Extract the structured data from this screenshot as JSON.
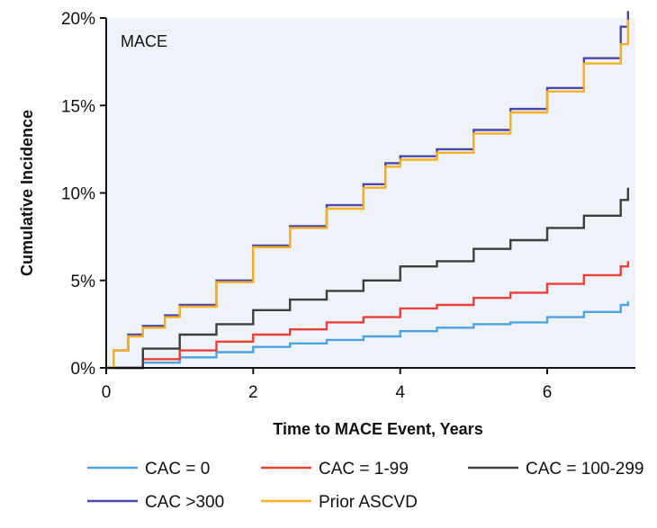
{
  "chart_data": {
    "type": "line",
    "step": true,
    "panel_label": "MACE",
    "xlabel": "Time to MACE Event, Years",
    "ylabel": "Cumulative Incidence",
    "xlim": [
      0,
      7.2
    ],
    "ylim": [
      0,
      20
    ],
    "x_ticks": [
      0,
      2,
      4,
      6
    ],
    "x_tick_labels": [
      "0",
      "2",
      "4",
      "6"
    ],
    "y_ticks": [
      0,
      5,
      10,
      15,
      20
    ],
    "y_tick_labels": [
      "0%",
      "5%",
      "10%",
      "15%",
      "20%"
    ],
    "background": "#eef3fa",
    "series": [
      {
        "name": "CAC = 0",
        "color": "#4ea3df",
        "x": [
          0,
          0.5,
          1,
          1.5,
          2,
          2.5,
          3,
          3.5,
          4,
          4.5,
          5,
          5.5,
          6,
          6.5,
          7,
          7.1
        ],
        "y": [
          0,
          0.3,
          0.6,
          0.9,
          1.2,
          1.4,
          1.6,
          1.8,
          2.1,
          2.3,
          2.5,
          2.6,
          2.9,
          3.2,
          3.6,
          3.8
        ]
      },
      {
        "name": "CAC = 1-99",
        "color": "#e8403a",
        "x": [
          0,
          0.5,
          1,
          1.5,
          2,
          2.5,
          3,
          3.5,
          4,
          4.5,
          5,
          5.5,
          6,
          6.5,
          7,
          7.1
        ],
        "y": [
          0,
          0.5,
          1.0,
          1.5,
          1.9,
          2.2,
          2.6,
          2.9,
          3.4,
          3.6,
          4.0,
          4.3,
          4.8,
          5.3,
          5.8,
          6.1
        ]
      },
      {
        "name": "CAC = 100-299",
        "color": "#3d3d3d",
        "x": [
          0,
          0.5,
          1,
          1.5,
          2,
          2.5,
          3,
          3.5,
          4,
          4.5,
          5,
          5.5,
          6,
          6.5,
          7,
          7.1
        ],
        "y": [
          0,
          1.1,
          1.9,
          2.5,
          3.3,
          3.9,
          4.4,
          5.0,
          5.8,
          6.1,
          6.8,
          7.3,
          8.0,
          8.7,
          9.6,
          10.3
        ]
      },
      {
        "name": "CAC >300",
        "color": "#4b46a8",
        "x": [
          0,
          0.1,
          0.3,
          0.5,
          0.8,
          1,
          1.5,
          2,
          2.5,
          3,
          3.5,
          3.8,
          4,
          4.5,
          5,
          5.5,
          6,
          6.5,
          7,
          7.1
        ],
        "y": [
          0,
          1.0,
          1.9,
          2.4,
          3.0,
          3.6,
          5.0,
          7.0,
          8.1,
          9.3,
          10.5,
          11.7,
          12.1,
          12.5,
          13.6,
          14.8,
          16.0,
          17.7,
          19.5,
          20.4
        ]
      },
      {
        "name": "Prior ASCVD",
        "color": "#f5b025",
        "x": [
          0,
          0.1,
          0.3,
          0.5,
          0.8,
          1,
          1.5,
          2,
          2.5,
          3,
          3.5,
          3.8,
          4,
          4.5,
          5,
          5.5,
          6,
          6.5,
          7,
          7.1
        ],
        "y": [
          0,
          1.0,
          1.8,
          2.3,
          2.9,
          3.5,
          4.9,
          6.9,
          8.0,
          9.1,
          10.3,
          11.5,
          11.9,
          12.3,
          13.4,
          14.6,
          15.8,
          17.4,
          18.5,
          19.9
        ]
      }
    ]
  }
}
